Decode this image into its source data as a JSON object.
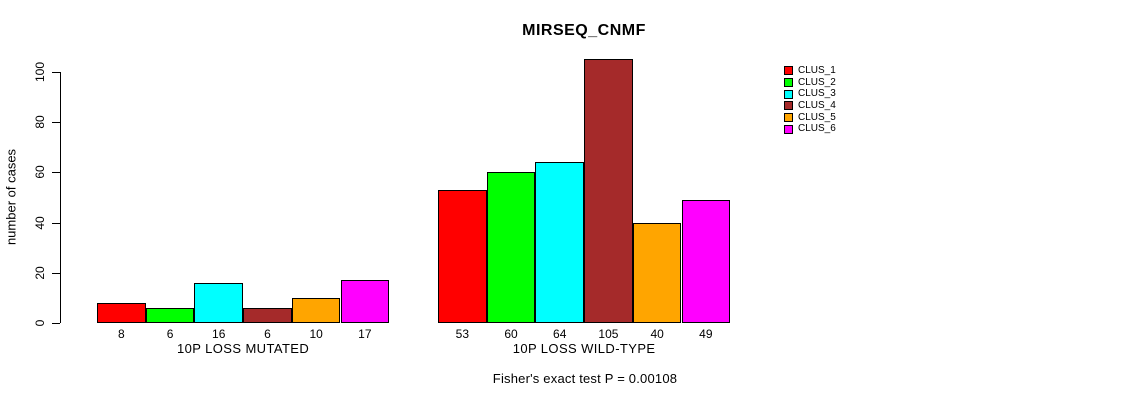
{
  "chart_data": {
    "type": "bar",
    "title": "MIRSEQ_CNMF",
    "ylabel": "number of cases",
    "ylim": [
      0,
      105
    ],
    "yticks": [
      0,
      20,
      40,
      60,
      80,
      100
    ],
    "grid": false,
    "legend_position": "right",
    "groups": [
      {
        "label": "10P LOSS MUTATED",
        "values": [
          8,
          6,
          16,
          6,
          10,
          17
        ],
        "bar_labels": [
          "8",
          "6",
          "16",
          "6",
          "10",
          "17"
        ]
      },
      {
        "label": "10P LOSS WILD-TYPE",
        "values": [
          53,
          60,
          64,
          105,
          40,
          49
        ],
        "bar_labels": [
          "53",
          "60",
          "64",
          "105",
          "40",
          "49"
        ]
      }
    ],
    "series": [
      {
        "name": "CLUS_1",
        "color": "#FF0000",
        "values": [
          8,
          53
        ]
      },
      {
        "name": "CLUS_2",
        "color": "#00FF00",
        "values": [
          6,
          60
        ]
      },
      {
        "name": "CLUS_3",
        "color": "#00FFFF",
        "values": [
          16,
          64
        ]
      },
      {
        "name": "CLUS_4",
        "color": "#A52A2A",
        "values": [
          6,
          105
        ]
      },
      {
        "name": "CLUS_5",
        "color": "#FFA500",
        "values": [
          10,
          40
        ]
      },
      {
        "name": "CLUS_6",
        "color": "#FF00FF",
        "values": [
          17,
          49
        ]
      }
    ],
    "annotation": "Fisher's exact test P = 0.00108",
    "axis_color": "#000000",
    "background_color": "#FFFFFF"
  }
}
